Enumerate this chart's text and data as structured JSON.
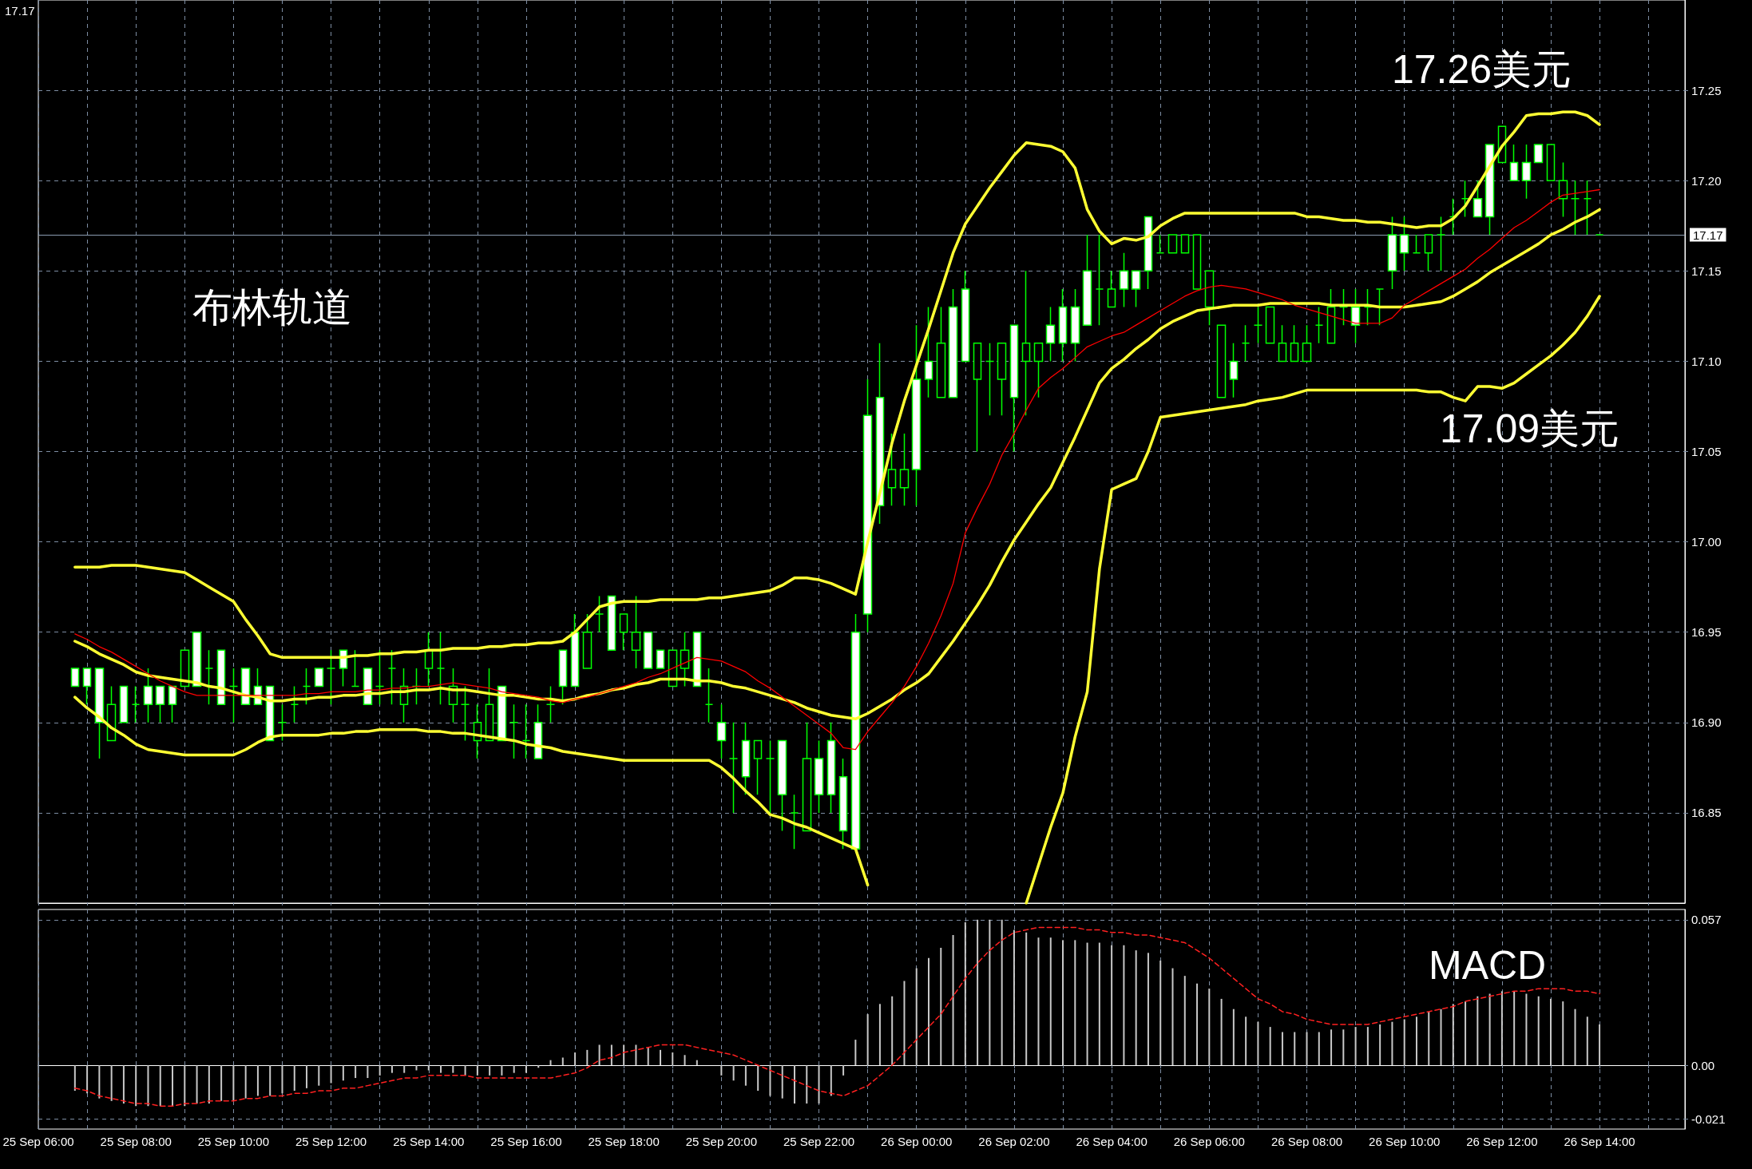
{
  "chart_data": [
    {
      "type": "candlestick",
      "marker": "none",
      "grid": true,
      "tick_labels": "y",
      "annotations": [
        "布林轨道",
        "17.26美元",
        "17.09美元",
        "17.17"
      ],
      "categories": [
        null,
        null,
        null,
        null,
        null,
        null,
        null,
        null,
        null,
        null,
        null,
        null,
        null,
        null,
        null,
        null,
        null,
        null,
        null,
        null,
        null,
        null,
        null,
        null,
        null,
        null,
        null,
        null,
        null,
        null,
        null,
        null,
        null,
        null,
        null,
        null,
        null,
        null,
        null,
        null,
        null,
        null,
        null,
        null,
        null,
        null,
        null,
        null,
        null,
        null,
        null,
        null,
        null,
        null,
        null,
        null,
        null,
        null,
        null,
        null,
        null,
        null,
        null,
        null,
        null,
        null,
        null,
        null,
        null,
        null,
        null,
        null,
        null,
        null,
        null,
        null,
        null,
        null,
        null,
        null,
        null,
        null,
        null,
        null,
        null,
        null,
        null,
        null,
        null,
        null,
        null,
        null,
        null,
        null,
        null,
        null,
        null,
        null,
        null,
        null,
        null,
        null,
        null,
        null,
        null,
        null,
        null,
        null,
        null,
        null,
        null,
        null,
        null,
        null,
        null,
        null,
        null,
        null,
        null,
        null,
        null,
        null,
        null,
        null,
        null,
        null,
        null,
        null,
        null,
        null,
        null,
        null,
        null,
        null,
        null,
        null
      ],
      "ylim": [
        16.8,
        17.3
      ],
      "yticks": [
        {
          "value": 16.85,
          "label": "16.85"
        },
        {
          "value": 16.9,
          "label": "16.90"
        },
        {
          "value": 16.95,
          "label": "16.95"
        },
        {
          "value": 17,
          "label": "17.00"
        },
        {
          "value": 17.05,
          "label": "17.05"
        },
        {
          "value": 17.1,
          "label": "17.10"
        },
        {
          "value": 17.15,
          "label": "17.15"
        },
        {
          "value": 17.2,
          "label": "17.20"
        },
        {
          "value": 17.25,
          "label": "17.25"
        }
      ],
      "ref_lines": [
        {
          "axis": "y",
          "value": 17.17,
          "label": "17.17",
          "color": "#8a9bb0"
        }
      ],
      "ohlc": [
        null,
        null,
        null,
        [
          16.92,
          16.93,
          16.92,
          16.93
        ],
        [
          16.92,
          16.93,
          16.91,
          16.93
        ],
        [
          16.9,
          16.93,
          16.88,
          16.93
        ],
        [
          16.91,
          16.92,
          16.89,
          16.89
        ],
        [
          16.9,
          16.92,
          16.9,
          16.92
        ],
        [
          16.91,
          16.92,
          16.9,
          16.91
        ],
        [
          16.91,
          16.93,
          16.9,
          16.92
        ],
        [
          16.91,
          16.92,
          16.9,
          16.92
        ],
        [
          16.91,
          16.92,
          16.9,
          16.92
        ],
        [
          16.94,
          16.94,
          16.92,
          16.92
        ],
        [
          16.92,
          16.95,
          16.92,
          16.95
        ],
        [
          16.93,
          16.94,
          16.91,
          16.93
        ],
        [
          16.91,
          16.94,
          16.91,
          16.94
        ],
        [
          16.92,
          16.93,
          16.9,
          16.92
        ],
        [
          16.91,
          16.93,
          16.91,
          16.93
        ],
        [
          16.91,
          16.93,
          16.91,
          16.92
        ],
        [
          16.89,
          16.92,
          16.89,
          16.92
        ],
        [
          16.9,
          16.91,
          16.89,
          16.9
        ],
        [
          16.91,
          16.92,
          16.9,
          16.91
        ],
        [
          16.92,
          16.93,
          16.91,
          16.92
        ],
        [
          16.92,
          16.93,
          16.92,
          16.93
        ],
        [
          16.93,
          16.94,
          16.91,
          16.93
        ],
        [
          16.93,
          16.94,
          16.92,
          16.94
        ],
        [
          16.92,
          16.94,
          16.92,
          16.92
        ],
        [
          16.91,
          16.93,
          16.91,
          16.93
        ],
        [
          16.92,
          16.94,
          16.91,
          16.92
        ],
        [
          16.93,
          16.94,
          16.91,
          16.93
        ],
        [
          16.92,
          16.93,
          16.9,
          16.91
        ],
        [
          16.92,
          16.93,
          16.91,
          16.92
        ],
        [
          16.94,
          16.95,
          16.92,
          16.93
        ],
        [
          16.93,
          16.95,
          16.91,
          16.93
        ],
        [
          16.92,
          16.93,
          16.9,
          16.91
        ],
        [
          16.91,
          16.92,
          16.89,
          16.91
        ],
        [
          16.9,
          16.91,
          16.88,
          16.89
        ],
        [
          16.91,
          16.93,
          16.89,
          16.89
        ],
        [
          16.89,
          16.92,
          16.89,
          16.92
        ],
        [
          16.9,
          16.91,
          16.88,
          16.9
        ],
        [
          16.89,
          16.91,
          16.88,
          16.89
        ],
        [
          16.88,
          16.91,
          16.88,
          16.9
        ],
        [
          16.91,
          16.92,
          16.9,
          16.91
        ],
        [
          16.92,
          16.94,
          16.91,
          16.94
        ],
        [
          16.92,
          16.96,
          16.92,
          16.95
        ],
        [
          16.95,
          16.96,
          16.93,
          16.93
        ],
        [
          16.96,
          16.97,
          16.95,
          16.96
        ],
        [
          16.94,
          16.97,
          16.94,
          16.97
        ],
        [
          16.96,
          16.96,
          16.94,
          16.95
        ],
        [
          16.95,
          16.97,
          16.93,
          16.94
        ],
        [
          16.93,
          16.95,
          16.93,
          16.95
        ],
        [
          16.93,
          16.94,
          16.93,
          16.94
        ],
        [
          16.94,
          16.94,
          16.92,
          16.92
        ],
        [
          16.94,
          16.95,
          16.92,
          16.93
        ],
        [
          16.92,
          16.95,
          16.92,
          16.95
        ],
        [
          16.91,
          16.93,
          16.9,
          16.91
        ],
        [
          16.89,
          16.91,
          16.88,
          16.9
        ],
        [
          16.88,
          16.9,
          16.85,
          16.88
        ],
        [
          16.87,
          16.9,
          16.86,
          16.89
        ],
        [
          16.89,
          16.89,
          16.86,
          16.88
        ],
        [
          16.88,
          16.89,
          16.85,
          16.88
        ],
        [
          16.86,
          16.89,
          16.84,
          16.89
        ],
        [
          16.85,
          16.86,
          16.83,
          16.85
        ],
        [
          16.88,
          16.9,
          16.84,
          16.84
        ],
        [
          16.86,
          16.89,
          16.85,
          16.88
        ],
        [
          16.86,
          16.9,
          16.85,
          16.89
        ],
        [
          16.84,
          16.88,
          16.83,
          16.87
        ],
        [
          16.83,
          16.96,
          16.83,
          16.95
        ],
        [
          16.96,
          17.09,
          16.95,
          17.07
        ],
        [
          17.02,
          17.11,
          17.01,
          17.08
        ],
        [
          17.04,
          17.06,
          17.02,
          17.03
        ],
        [
          17.04,
          17.06,
          17.02,
          17.03
        ],
        [
          17.04,
          17.12,
          17.02,
          17.09
        ],
        [
          17.09,
          17.13,
          17.08,
          17.1
        ],
        [
          17.11,
          17.13,
          17.08,
          17.08
        ],
        [
          17.08,
          17.14,
          17.08,
          17.13
        ],
        [
          17.1,
          17.15,
          17.1,
          17.14
        ],
        [
          17.11,
          17.11,
          17.05,
          17.09
        ],
        [
          17.1,
          17.11,
          17.07,
          17.1
        ],
        [
          17.11,
          17.11,
          17.07,
          17.09
        ],
        [
          17.08,
          17.12,
          17.05,
          17.12
        ],
        [
          17.11,
          17.15,
          17.07,
          17.1
        ],
        [
          17.11,
          17.11,
          17.08,
          17.1
        ],
        [
          17.11,
          17.13,
          17.1,
          17.12
        ],
        [
          17.11,
          17.14,
          17.1,
          17.13
        ],
        [
          17.11,
          17.14,
          17.1,
          17.13
        ],
        [
          17.12,
          17.17,
          17.12,
          17.15
        ],
        [
          17.14,
          17.17,
          17.12,
          17.14
        ],
        [
          17.14,
          17.15,
          17.13,
          17.13
        ],
        [
          17.14,
          17.16,
          17.13,
          17.15
        ],
        [
          17.14,
          17.15,
          17.13,
          17.15
        ],
        [
          17.15,
          17.18,
          17.14,
          17.18
        ],
        [
          17.16,
          17.17,
          17.16,
          17.16
        ],
        [
          17.17,
          17.17,
          17.16,
          17.16
        ],
        [
          17.17,
          17.17,
          17.16,
          17.16
        ],
        [
          17.17,
          17.17,
          17.14,
          17.14
        ],
        [
          17.15,
          17.15,
          17.12,
          17.13
        ],
        [
          17.12,
          17.12,
          17.08,
          17.08
        ],
        [
          17.09,
          17.11,
          17.08,
          17.1
        ],
        [
          17.11,
          17.12,
          17.1,
          17.11
        ],
        [
          17.12,
          17.13,
          17.11,
          17.12
        ],
        [
          17.13,
          17.13,
          17.11,
          17.11
        ],
        [
          17.11,
          17.12,
          17.1,
          17.1
        ],
        [
          17.11,
          17.12,
          17.1,
          17.1
        ],
        [
          17.11,
          17.12,
          17.1,
          17.1
        ],
        [
          17.12,
          17.13,
          17.11,
          17.12
        ],
        [
          17.13,
          17.14,
          17.11,
          17.11
        ],
        [
          17.13,
          17.14,
          17.12,
          17.13
        ],
        [
          17.12,
          17.14,
          17.11,
          17.13
        ],
        [
          17.13,
          17.14,
          17.12,
          17.13
        ],
        [
          17.14,
          17.14,
          17.12,
          17.14
        ],
        [
          17.15,
          17.18,
          17.14,
          17.17
        ],
        [
          17.16,
          17.18,
          17.15,
          17.17
        ],
        [
          17.16,
          17.17,
          17.16,
          17.16
        ],
        [
          17.17,
          17.17,
          17.15,
          17.16
        ],
        [
          17.17,
          17.18,
          17.15,
          17.17
        ],
        [
          17.18,
          17.19,
          17.17,
          17.18
        ],
        [
          17.19,
          17.2,
          17.18,
          17.19
        ],
        [
          17.18,
          17.2,
          17.18,
          17.19
        ],
        [
          17.18,
          17.22,
          17.17,
          17.22
        ],
        [
          17.23,
          17.23,
          17.21,
          17.21
        ],
        [
          17.2,
          17.22,
          17.2,
          17.21
        ],
        [
          17.2,
          17.22,
          17.19,
          17.21
        ],
        [
          17.21,
          17.22,
          17.21,
          17.22
        ],
        [
          17.22,
          17.22,
          17.2,
          17.2
        ],
        [
          17.2,
          17.21,
          17.18,
          17.19
        ],
        [
          17.19,
          17.2,
          17.17,
          17.19
        ],
        [
          17.19,
          17.2,
          17.17,
          17.19
        ],
        [
          17.17,
          17.17,
          17.17,
          17.17
        ],
        null,
        null,
        null,
        null,
        null,
        null,
        null
      ],
      "series": [
        {
          "type": "line",
          "color": "#ffff33",
          "values": [
            null,
            null,
            null,
            16.986,
            16.986,
            16.986,
            16.987,
            16.987,
            16.987,
            16.986,
            16.985,
            16.984,
            16.983,
            16.979,
            16.975,
            16.971,
            16.967,
            16.957,
            16.948,
            16.938,
            16.936,
            16.936,
            16.936,
            16.936,
            16.936,
            16.936,
            16.937,
            16.937,
            16.938,
            16.938,
            16.939,
            16.939,
            16.94,
            16.94,
            16.941,
            16.941,
            16.941,
            16.942,
            16.942,
            16.943,
            16.943,
            16.944,
            16.944,
            16.945,
            16.95,
            16.957,
            16.964,
            16.966,
            16.967,
            16.967,
            16.967,
            16.968,
            16.968,
            16.968,
            16.968,
            16.969,
            16.969,
            16.97,
            16.971,
            16.972,
            16.973,
            16.976,
            16.98,
            16.98,
            16.979,
            16.977,
            16.974,
            16.971,
            17.0,
            17.027,
            17.055,
            17.078,
            17.098,
            17.118,
            17.139,
            17.16,
            17.176,
            17.186,
            17.196,
            17.205,
            17.214,
            17.221,
            17.22,
            17.219,
            17.216,
            17.207,
            17.184,
            17.172,
            17.165,
            17.168,
            17.167,
            17.169,
            17.175,
            17.179,
            17.182,
            17.182,
            17.182,
            17.182,
            17.182,
            17.182,
            17.182,
            17.182,
            17.182,
            17.182,
            17.18,
            17.18,
            17.179,
            17.178,
            17.178,
            17.177,
            17.177,
            17.176,
            17.175,
            17.174,
            17.175,
            17.175,
            17.179,
            17.186,
            17.197,
            17.208,
            17.219,
            17.227,
            17.236,
            17.237,
            17.237,
            17.238,
            17.238,
            17.236,
            17.231,
            null,
            null,
            null,
            null,
            null,
            null,
            null
          ]
        },
        {
          "type": "line",
          "color": "#ffff33",
          "values": [
            null,
            null,
            null,
            16.945,
            16.942,
            16.938,
            16.935,
            16.932,
            16.928,
            16.926,
            16.925,
            16.924,
            16.923,
            16.922,
            16.92,
            16.919,
            16.917,
            16.915,
            16.914,
            16.912,
            16.912,
            16.913,
            16.913,
            16.914,
            16.914,
            16.915,
            16.915,
            16.916,
            16.916,
            16.917,
            16.917,
            16.918,
            16.918,
            16.919,
            16.918,
            16.918,
            16.917,
            16.916,
            16.915,
            16.915,
            16.914,
            16.913,
            16.913,
            16.912,
            16.913,
            16.915,
            16.916,
            16.918,
            16.919,
            16.921,
            16.922,
            16.924,
            16.924,
            16.924,
            16.923,
            16.923,
            16.922,
            16.92,
            16.919,
            16.917,
            16.915,
            16.913,
            16.911,
            16.908,
            16.906,
            16.904,
            16.903,
            16.902,
            16.905,
            16.909,
            16.913,
            16.918,
            16.922,
            16.927,
            16.936,
            16.945,
            16.955,
            16.965,
            16.976,
            16.989,
            17.001,
            17.011,
            17.021,
            17.03,
            17.044,
            17.058,
            17.073,
            17.088,
            17.096,
            17.101,
            17.107,
            17.112,
            17.118,
            17.122,
            17.125,
            17.128,
            17.129,
            17.13,
            17.131,
            17.131,
            17.131,
            17.132,
            17.132,
            17.132,
            17.132,
            17.132,
            17.131,
            17.131,
            17.131,
            17.131,
            17.13,
            17.13,
            17.13,
            17.131,
            17.132,
            17.133,
            17.136,
            17.14,
            17.144,
            17.149,
            17.153,
            17.157,
            17.161,
            17.165,
            17.17,
            17.173,
            17.177,
            17.18,
            17.184,
            null,
            null,
            null,
            null,
            null,
            null,
            null
          ]
        },
        {
          "type": "line",
          "color": "#ffff33",
          "values": [
            null,
            null,
            null,
            16.914,
            16.908,
            16.903,
            16.897,
            16.893,
            16.888,
            16.885,
            16.884,
            16.883,
            16.882,
            16.882,
            16.882,
            16.882,
            16.882,
            16.885,
            16.889,
            16.892,
            16.893,
            16.893,
            16.893,
            16.893,
            16.894,
            16.894,
            16.895,
            16.895,
            16.896,
            16.896,
            16.896,
            16.896,
            16.895,
            16.895,
            16.894,
            16.894,
            16.893,
            16.892,
            16.891,
            16.89,
            16.888,
            16.887,
            16.886,
            16.884,
            16.883,
            16.882,
            16.881,
            16.88,
            16.879,
            16.879,
            16.879,
            16.879,
            16.879,
            16.879,
            16.879,
            16.879,
            16.875,
            16.869,
            16.862,
            16.856,
            16.849,
            16.847,
            16.844,
            16.842,
            16.839,
            16.836,
            16.833,
            16.83,
            16.81,
            null,
            null,
            null,
            null,
            null,
            null,
            null,
            null,
            null,
            null,
            null,
            null,
            16.8,
            16.821,
            16.842,
            16.861,
            16.892,
            16.917,
            16.985,
            17.029,
            17.032,
            17.035,
            17.05,
            17.069,
            17.07,
            17.071,
            17.072,
            17.073,
            17.074,
            17.075,
            17.076,
            17.078,
            17.079,
            17.08,
            17.082,
            17.084,
            17.084,
            17.084,
            17.084,
            17.084,
            17.084,
            17.084,
            17.084,
            17.084,
            17.084,
            17.083,
            17.083,
            17.08,
            17.078,
            17.086,
            17.086,
            17.085,
            17.088,
            17.093,
            17.098,
            17.103,
            17.109,
            17.116,
            17.125,
            17.136,
            null,
            null,
            null,
            null,
            null,
            null,
            null
          ]
        },
        {
          "type": "line",
          "color": "#ff0000",
          "values": [
            null,
            null,
            null,
            16.949,
            16.946,
            16.942,
            16.939,
            16.935,
            16.931,
            16.927,
            16.923,
            16.92,
            16.917,
            16.915,
            16.915,
            16.915,
            16.915,
            16.915,
            16.915,
            16.915,
            16.915,
            16.915,
            16.916,
            16.916,
            16.917,
            16.917,
            16.917,
            16.918,
            16.918,
            16.919,
            16.919,
            16.92,
            16.92,
            16.921,
            16.922,
            16.921,
            16.92,
            16.919,
            16.917,
            16.916,
            16.915,
            16.914,
            16.912,
            16.911,
            16.913,
            16.914,
            16.916,
            16.918,
            16.92,
            16.922,
            16.925,
            16.927,
            16.93,
            16.933,
            16.936,
            16.935,
            16.934,
            16.931,
            16.928,
            16.923,
            16.919,
            16.914,
            16.909,
            16.904,
            16.899,
            16.894,
            16.886,
            16.885,
            16.895,
            16.903,
            16.911,
            16.92,
            16.931,
            16.944,
            16.959,
            16.977,
            17.005,
            17.019,
            17.032,
            17.048,
            17.06,
            17.073,
            17.085,
            17.091,
            17.096,
            17.102,
            17.108,
            17.111,
            17.114,
            17.116,
            17.12,
            17.124,
            17.128,
            17.132,
            17.136,
            17.139,
            17.141,
            17.142,
            17.141,
            17.14,
            17.138,
            17.136,
            17.134,
            17.131,
            17.129,
            17.127,
            17.125,
            17.123,
            17.121,
            17.121,
            17.121,
            17.124,
            17.131,
            17.135,
            17.139,
            17.143,
            17.147,
            17.151,
            17.157,
            17.162,
            17.168,
            17.174,
            17.178,
            17.183,
            17.188,
            17.192,
            17.193,
            17.194,
            17.195,
            null,
            null,
            null,
            null,
            null,
            null,
            null
          ]
        }
      ]
    },
    {
      "type": "bar",
      "marker": "none",
      "grid": true,
      "annotations": [
        "MACD"
      ],
      "categories": [
        "25 Sep 06:00",
        null,
        null,
        null,
        null,
        null,
        null,
        null,
        "25 Sep 08:00",
        null,
        null,
        null,
        null,
        null,
        null,
        null,
        "25 Sep 10:00",
        null,
        null,
        null,
        null,
        null,
        null,
        null,
        "25 Sep 12:00",
        null,
        null,
        null,
        null,
        null,
        null,
        null,
        "25 Sep 14:00",
        null,
        null,
        null,
        null,
        null,
        null,
        null,
        "25 Sep 16:00",
        null,
        null,
        null,
        null,
        null,
        null,
        null,
        "25 Sep 18:00",
        null,
        null,
        null,
        null,
        null,
        null,
        null,
        "25 Sep 20:00",
        null,
        null,
        null,
        null,
        null,
        null,
        null,
        "25 Sep 22:00",
        null,
        null,
        null,
        null,
        null,
        null,
        null,
        "26 Sep 00:00",
        null,
        null,
        null,
        null,
        null,
        null,
        null,
        "26 Sep 02:00",
        null,
        null,
        null,
        null,
        null,
        null,
        null,
        "26 Sep 04:00",
        null,
        null,
        null,
        null,
        null,
        null,
        null,
        "26 Sep 06:00",
        null,
        null,
        null,
        null,
        null,
        null,
        null,
        "26 Sep 08:00",
        null,
        null,
        null,
        null,
        null,
        null,
        null,
        "26 Sep 10:00",
        null,
        null,
        null,
        null,
        null,
        null,
        null,
        "26 Sep 12:00",
        null,
        null,
        null,
        null,
        null,
        null,
        null,
        "26 Sep 14:00",
        null,
        null,
        null,
        null,
        null,
        null,
        null
      ],
      "ylim": [
        -0.025,
        0.061
      ],
      "yticks": [
        -0.021,
        {
          "value": 0,
          "label": "0.00"
        },
        0.057
      ],
      "series": [
        {
          "color": "#c8c8c8",
          "values": [
            null,
            null,
            null,
            -0.01,
            -0.011,
            -0.013,
            -0.014,
            -0.015,
            -0.016,
            -0.016,
            -0.016,
            -0.016,
            -0.016,
            -0.015,
            -0.015,
            -0.014,
            -0.014,
            -0.013,
            -0.012,
            -0.012,
            -0.011,
            -0.01,
            -0.009,
            -0.008,
            -0.007,
            -0.006,
            -0.005,
            -0.005,
            -0.004,
            -0.003,
            -0.003,
            -0.002,
            -0.002,
            -0.003,
            -0.003,
            -0.004,
            -0.004,
            -0.004,
            -0.004,
            -0.003,
            -0.003,
            -0.001,
            0.002,
            0.003,
            0.005,
            0.006,
            0.008,
            0.008,
            0.008,
            0.008,
            0.007,
            0.006,
            0.005,
            0.004,
            0.002,
            0.0,
            -0.004,
            -0.006,
            -0.008,
            -0.01,
            -0.012,
            -0.013,
            -0.015,
            -0.015,
            -0.015,
            -0.012,
            -0.004,
            0.01,
            0.02,
            0.024,
            0.027,
            0.033,
            0.038,
            0.042,
            0.046,
            0.051,
            0.056,
            0.057,
            0.057,
            0.057,
            0.053,
            0.052,
            0.05,
            0.05,
            0.049,
            0.049,
            0.048,
            0.048,
            0.047,
            0.047,
            0.045,
            0.044,
            0.041,
            0.038,
            0.035,
            0.032,
            0.03,
            0.026,
            0.022,
            0.019,
            0.017,
            0.015,
            0.013,
            0.013,
            0.013,
            0.013,
            0.014,
            0.014,
            0.015,
            0.015,
            0.016,
            0.017,
            0.018,
            0.019,
            0.021,
            0.022,
            0.024,
            0.025,
            0.027,
            0.028,
            0.029,
            0.029,
            0.028,
            0.027,
            0.026,
            0.025,
            0.022,
            0.019,
            0.016,
            null,
            null,
            null,
            null,
            null,
            null,
            null
          ]
        },
        {
          "type": "line",
          "color": "#ff2020",
          "line_style": "dashed",
          "values": [
            null,
            null,
            null,
            -0.009,
            -0.01,
            -0.012,
            -0.013,
            -0.014,
            -0.015,
            -0.015,
            -0.016,
            -0.016,
            -0.015,
            -0.015,
            -0.014,
            -0.014,
            -0.014,
            -0.013,
            -0.013,
            -0.012,
            -0.012,
            -0.011,
            -0.011,
            -0.01,
            -0.01,
            -0.009,
            -0.009,
            -0.008,
            -0.007,
            -0.006,
            -0.005,
            -0.005,
            -0.004,
            -0.004,
            -0.004,
            -0.004,
            -0.005,
            -0.005,
            -0.005,
            -0.005,
            -0.005,
            -0.005,
            -0.005,
            -0.004,
            -0.003,
            -0.001,
            0.002,
            0.003,
            0.005,
            0.006,
            0.007,
            0.008,
            0.008,
            0.008,
            0.007,
            0.006,
            0.005,
            0.004,
            0.002,
            0.0,
            -0.002,
            -0.004,
            -0.006,
            -0.008,
            -0.01,
            -0.011,
            -0.012,
            -0.01,
            -0.008,
            -0.004,
            0.0,
            0.005,
            0.01,
            0.015,
            0.02,
            0.027,
            0.034,
            0.04,
            0.045,
            0.049,
            0.052,
            0.053,
            0.054,
            0.054,
            0.054,
            0.054,
            0.053,
            0.053,
            0.052,
            0.052,
            0.051,
            0.051,
            0.05,
            0.049,
            0.048,
            0.045,
            0.042,
            0.038,
            0.034,
            0.03,
            0.026,
            0.024,
            0.021,
            0.02,
            0.018,
            0.017,
            0.016,
            0.016,
            0.016,
            0.016,
            0.017,
            0.018,
            0.019,
            0.02,
            0.021,
            0.022,
            0.023,
            0.025,
            0.026,
            0.027,
            0.028,
            0.029,
            0.029,
            0.03,
            0.03,
            0.03,
            0.029,
            0.029,
            0.028,
            null,
            null,
            null,
            null,
            null,
            null,
            null
          ]
        }
      ]
    }
  ]
}
